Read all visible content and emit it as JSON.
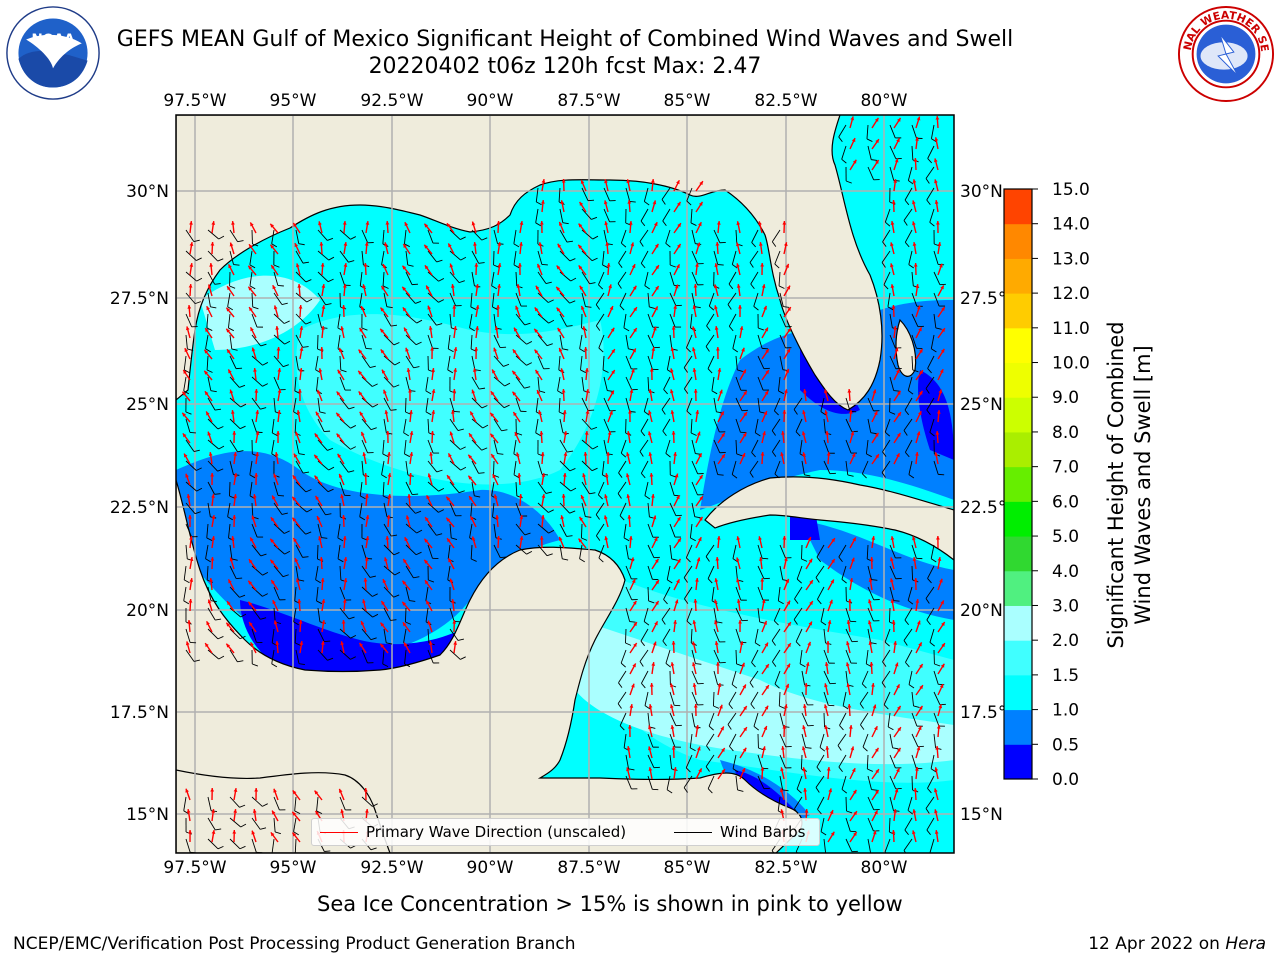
{
  "header": {
    "title_line1": "GEFS MEAN Gulf of Mexico Significant Height of Combined Wind Waves and Swell",
    "title_line2": "20220402 t06z 120h fcst   Max: 2.47"
  },
  "logos": {
    "noaa": {
      "text": "NOAA",
      "ring_text": "NATIONAL OCEANIC AND ATMOSPHERIC ADMINISTRATION · U.S. DEPARTMENT OF COMMERCE ·",
      "icon": "noaa-logo"
    },
    "nws": {
      "ring_text": "NATIONAL WEATHER SERVICE",
      "icon": "nws-logo"
    }
  },
  "map": {
    "lon_ticks": [
      "97.5°W",
      "95°W",
      "92.5°W",
      "90°W",
      "87.5°W",
      "85°W",
      "82.5°W",
      "80°W"
    ],
    "lat_ticks_left": [
      "30°N",
      "27.5°N",
      "25°N",
      "22.5°N",
      "20°N",
      "17.5°N",
      "15°N"
    ],
    "lat_ticks_right": [
      "30°N",
      "27.5°N",
      "25°N",
      "22.5°N",
      "20°N",
      "17.5°N",
      "15°N"
    ],
    "lon_extent": [
      -98.0,
      -78.2
    ],
    "lat_extent": [
      14.0,
      31.8
    ],
    "colors": {
      "land": "#efecdc",
      "grid": "#b0b0b0",
      "barb": "#000000",
      "arrow": "#ff0000"
    }
  },
  "colorbar": {
    "label_line1": "Significant Height of Combined",
    "label_line2": "Wind Waves and Swell [m]",
    "ticks": [
      "0.0",
      "0.5",
      "1.0",
      "1.5",
      "2.0",
      "3.0",
      "4.0",
      "5.0",
      "6.0",
      "7.0",
      "8.0",
      "9.0",
      "10.0",
      "11.0",
      "12.0",
      "13.0",
      "14.0",
      "15.0"
    ],
    "colors": [
      "#0000ff",
      "#0080ff",
      "#00ffff",
      "#40ffff",
      "#aaffff",
      "#50f080",
      "#30d830",
      "#00ee00",
      "#66ee00",
      "#aaee00",
      "#ccff00",
      "#eeff00",
      "#ffff00",
      "#ffcc00",
      "#ffaa00",
      "#ff8800",
      "#ff4400",
      "#ff0000"
    ]
  },
  "legend": {
    "primary_wave": "Primary Wave Direction (unscaled)",
    "wind_barbs": "Wind Barbs",
    "primary_color": "#ff0000",
    "barb_color": "#000000"
  },
  "caption": "Sea Ice Concentration > 15% is shown in pink to yellow",
  "footer": {
    "left": "NCEP/EMC/Verification Post Processing Product Generation Branch",
    "right_date": "12 Apr 2022 on",
    "right_host": "Hera"
  }
}
